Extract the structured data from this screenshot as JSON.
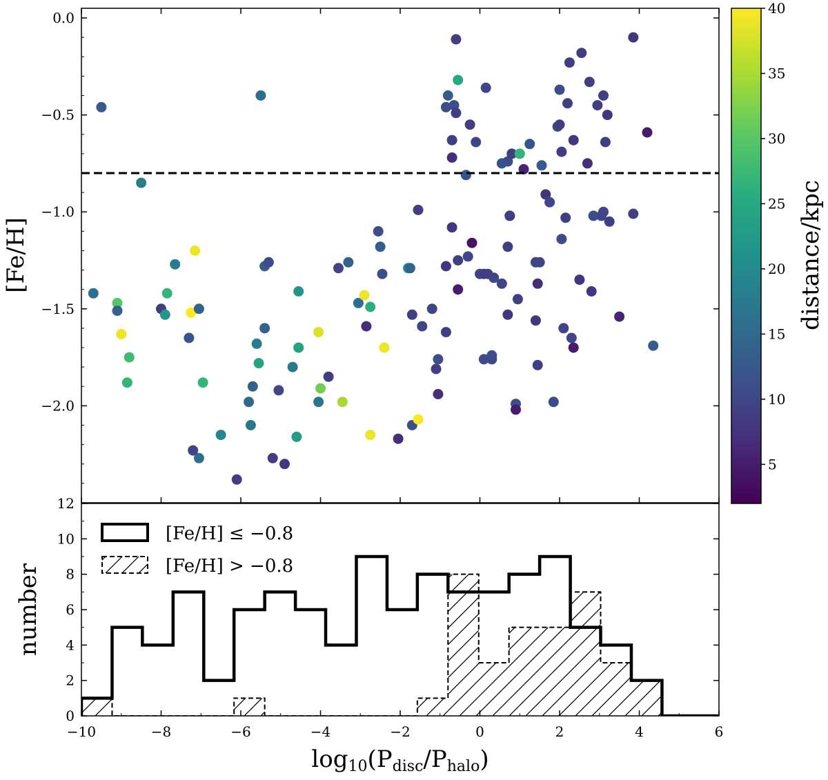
{
  "chart_data": [
    {
      "type": "scatter",
      "ylabel": "[Fe/H]",
      "xlim": [
        -10,
        6
      ],
      "ylim": [
        -2.5,
        0.05
      ],
      "xticks": [
        -10,
        -8,
        -6,
        -4,
        -2,
        0,
        2,
        4,
        6
      ],
      "yticks": [
        -2.0,
        -1.5,
        -1.0,
        -0.5,
        0.0
      ],
      "ytick_labels": [
        "−2.0",
        "−1.5",
        "−1.0",
        "−0.5",
        "0.0"
      ],
      "reference_line": {
        "y": -0.8,
        "style": "dashed"
      },
      "colorbar": {
        "label": "distance/kpc",
        "range": [
          2,
          40
        ],
        "ticks": [
          5,
          10,
          15,
          20,
          25,
          30,
          35,
          40
        ],
        "colormap": "viridis"
      },
      "points": [
        [
          -9.7,
          -1.42,
          16
        ],
        [
          -9.5,
          -0.46,
          13
        ],
        [
          -9.1,
          -1.47,
          30
        ],
        [
          -9.1,
          -1.51,
          14
        ],
        [
          -9.0,
          -1.63,
          39
        ],
        [
          -8.8,
          -1.75,
          28
        ],
        [
          -8.85,
          -1.88,
          27
        ],
        [
          -8.5,
          -0.85,
          18
        ],
        [
          -8.0,
          -1.5,
          9
        ],
        [
          -7.9,
          -1.53,
          22
        ],
        [
          -7.85,
          -1.42,
          27
        ],
        [
          -7.65,
          -1.27,
          18
        ],
        [
          -7.3,
          -1.65,
          12
        ],
        [
          -7.25,
          -1.52,
          40
        ],
        [
          -7.15,
          -1.2,
          39
        ],
        [
          -7.05,
          -1.5,
          14
        ],
        [
          -7.05,
          -2.27,
          16
        ],
        [
          -7.2,
          -2.23,
          10
        ],
        [
          -6.95,
          -1.88,
          27
        ],
        [
          -6.5,
          -2.15,
          20
        ],
        [
          -6.1,
          -2.38,
          9
        ],
        [
          -5.8,
          -1.98,
          15
        ],
        [
          -5.75,
          -2.1,
          17
        ],
        [
          -5.7,
          -1.9,
          14
        ],
        [
          -5.6,
          -1.68,
          18
        ],
        [
          -5.55,
          -1.78,
          24
        ],
        [
          -5.5,
          -0.4,
          16
        ],
        [
          -5.4,
          -1.28,
          13
        ],
        [
          -5.4,
          -1.6,
          14
        ],
        [
          -5.3,
          -1.26,
          11
        ],
        [
          -5.2,
          -2.27,
          9
        ],
        [
          -5.05,
          -1.92,
          10
        ],
        [
          -4.9,
          -2.3,
          8
        ],
        [
          -4.7,
          -1.8,
          18
        ],
        [
          -4.6,
          -2.16,
          23
        ],
        [
          -4.55,
          -1.7,
          24
        ],
        [
          -4.55,
          -1.41,
          22
        ],
        [
          -4.05,
          -1.98,
          17
        ],
        [
          -4.05,
          -1.62,
          38
        ],
        [
          -4.0,
          -1.91,
          32
        ],
        [
          -3.8,
          -1.85,
          9
        ],
        [
          -3.55,
          -1.29,
          10
        ],
        [
          -3.45,
          -1.98,
          35
        ],
        [
          -3.3,
          -1.26,
          14
        ],
        [
          -3.05,
          -1.47,
          16
        ],
        [
          -2.9,
          -1.43,
          39
        ],
        [
          -2.85,
          -1.59,
          7
        ],
        [
          -2.75,
          -1.49,
          26
        ],
        [
          -2.75,
          -2.15,
          39
        ],
        [
          -2.55,
          -1.1,
          11
        ],
        [
          -2.5,
          -1.18,
          13
        ],
        [
          -2.45,
          -1.32,
          11
        ],
        [
          -2.4,
          -1.7,
          39
        ],
        [
          -2.05,
          -2.17,
          7
        ],
        [
          -1.8,
          -1.29,
          21
        ],
        [
          -1.75,
          -1.29,
          14
        ],
        [
          -1.7,
          -1.53,
          9
        ],
        [
          -1.7,
          -2.1,
          11
        ],
        [
          -1.55,
          -2.07,
          40
        ],
        [
          -1.55,
          -0.99,
          9
        ],
        [
          -1.45,
          -1.59,
          10
        ],
        [
          -1.2,
          -1.5,
          10
        ],
        [
          -1.1,
          -1.81,
          9
        ],
        [
          -1.05,
          -1.76,
          11
        ],
        [
          -1.05,
          -1.94,
          7
        ],
        [
          -0.85,
          -1.28,
          8
        ],
        [
          -0.85,
          -1.62,
          9
        ],
        [
          -0.85,
          -0.46,
          11
        ],
        [
          -0.8,
          -0.4,
          13
        ],
        [
          -0.7,
          -1.08,
          8
        ],
        [
          -0.7,
          -0.63,
          9
        ],
        [
          -0.7,
          -0.72,
          7
        ],
        [
          -0.65,
          -0.45,
          11
        ],
        [
          -0.6,
          -0.11,
          9
        ],
        [
          -0.6,
          -0.49,
          9
        ],
        [
          -0.55,
          -1.25,
          9
        ],
        [
          -0.55,
          -1.4,
          5
        ],
        [
          -0.55,
          -0.32,
          25
        ],
        [
          -0.35,
          -0.81,
          12
        ],
        [
          -0.3,
          -1.23,
          10
        ],
        [
          -0.25,
          -0.55,
          9
        ],
        [
          -0.2,
          -1.16,
          4
        ],
        [
          -0.1,
          -0.64,
          10
        ],
        [
          0.0,
          -1.32,
          10
        ],
        [
          0.1,
          -1.32,
          9
        ],
        [
          0.1,
          -1.76,
          11
        ],
        [
          0.15,
          -0.36,
          10
        ],
        [
          0.2,
          -1.32,
          9
        ],
        [
          0.3,
          -1.76,
          10
        ],
        [
          0.3,
          -1.74,
          11
        ],
        [
          0.35,
          -1.34,
          10
        ],
        [
          0.55,
          -0.75,
          12
        ],
        [
          0.55,
          -1.37,
          10
        ],
        [
          0.7,
          -0.74,
          11
        ],
        [
          0.7,
          -1.18,
          9
        ],
        [
          0.7,
          -1.53,
          8
        ],
        [
          0.75,
          -1.02,
          9
        ],
        [
          0.75,
          -1.02,
          9
        ],
        [
          0.8,
          -0.7,
          9
        ],
        [
          0.9,
          -1.99,
          11
        ],
        [
          0.9,
          -2.02,
          5
        ],
        [
          0.95,
          -1.45,
          9
        ],
        [
          1.0,
          -0.7,
          27
        ],
        [
          1.1,
          -0.78,
          6
        ],
        [
          1.25,
          -0.65,
          12
        ],
        [
          1.4,
          -1.26,
          10
        ],
        [
          1.4,
          -1.56,
          8
        ],
        [
          1.45,
          -1.37,
          7
        ],
        [
          1.45,
          -1.79,
          9
        ],
        [
          1.5,
          -1.26,
          10
        ],
        [
          1.55,
          -0.76,
          13
        ],
        [
          1.65,
          -0.91,
          8
        ],
        [
          1.75,
          -0.95,
          10
        ],
        [
          1.85,
          -1.98,
          11
        ],
        [
          1.95,
          -0.56,
          10
        ],
        [
          2.0,
          -0.37,
          11
        ],
        [
          2.0,
          -0.55,
          9
        ],
        [
          2.05,
          -0.69,
          9
        ],
        [
          2.05,
          -1.14,
          11
        ],
        [
          2.1,
          -1.6,
          10
        ],
        [
          2.15,
          -1.03,
          9
        ],
        [
          2.2,
          -0.44,
          9
        ],
        [
          2.25,
          -0.23,
          9
        ],
        [
          2.3,
          -1.65,
          10
        ],
        [
          2.35,
          -1.7,
          5
        ],
        [
          2.35,
          -0.63,
          8
        ],
        [
          2.5,
          -1.35,
          8
        ],
        [
          2.55,
          -0.18,
          9
        ],
        [
          2.7,
          -0.75,
          7
        ],
        [
          2.75,
          -0.33,
          9
        ],
        [
          2.8,
          -1.41,
          8
        ],
        [
          2.85,
          -1.02,
          11
        ],
        [
          2.95,
          -0.45,
          9
        ],
        [
          3.05,
          -1.02,
          10
        ],
        [
          3.1,
          -0.4,
          9
        ],
        [
          3.1,
          -1.0,
          10
        ],
        [
          3.15,
          -0.64,
          9
        ],
        [
          3.2,
          -0.5,
          8
        ],
        [
          3.25,
          -1.05,
          9
        ],
        [
          3.5,
          -1.54,
          6
        ],
        [
          3.85,
          -0.1,
          8
        ],
        [
          3.85,
          -1.01,
          9
        ],
        [
          4.2,
          -0.59,
          5
        ],
        [
          4.35,
          -1.69,
          13
        ]
      ]
    },
    {
      "type": "histogram",
      "xlabel": "log10(Pdisc/Phalo)",
      "ylabel": "number",
      "xlim": [
        -10,
        6
      ],
      "ylim": [
        0,
        12
      ],
      "xticks": [
        -10,
        -8,
        -6,
        -4,
        -2,
        0,
        2,
        4,
        6
      ],
      "xtick_labels": [
        "−10",
        "−8",
        "−6",
        "−4",
        "−2",
        "0",
        "2",
        "4",
        "6"
      ],
      "yticks": [
        0,
        2,
        4,
        6,
        8,
        10,
        12
      ],
      "bin_edges": [
        -10,
        -9.23,
        -8.47,
        -7.7,
        -6.93,
        -6.17,
        -5.4,
        -4.63,
        -3.87,
        -3.1,
        -2.33,
        -1.57,
        -0.8,
        -0.03,
        0.73,
        1.5,
        2.27,
        3.03,
        3.8,
        4.57,
        5.33,
        6.1
      ],
      "series": [
        {
          "name": "[Fe/H] ≤ −0.8",
          "style": "solid",
          "counts": [
            1,
            5,
            4,
            7,
            2,
            6,
            7,
            6,
            4,
            9,
            6,
            8,
            7,
            7,
            8,
            9,
            5,
            4,
            2,
            0,
            0
          ]
        },
        {
          "name": "[Fe/H] > −0.8",
          "style": "dashed-hatched",
          "counts": [
            1,
            0,
            0,
            0,
            0,
            1,
            0,
            0,
            0,
            0,
            0,
            1,
            8,
            3,
            5,
            5,
            7,
            3,
            2,
            0,
            0
          ]
        }
      ]
    }
  ]
}
